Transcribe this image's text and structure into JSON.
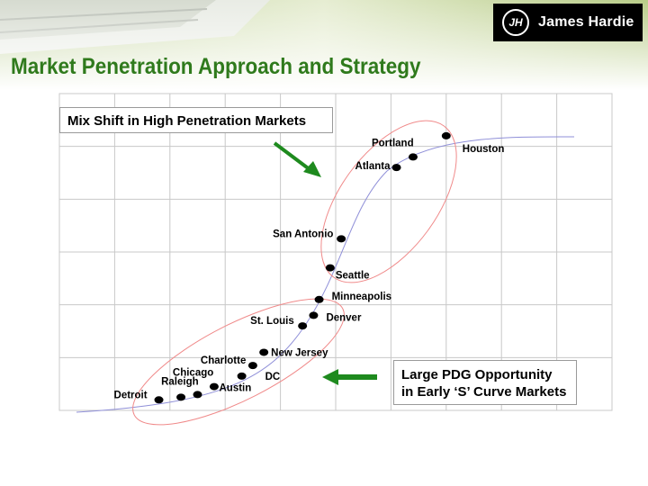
{
  "header": {
    "logo_text": "James Hardie",
    "logo_mark": "JH",
    "page_title": "Market Penetration Approach and Strategy"
  },
  "callouts": {
    "top": "Mix Shift in High Penetration Markets",
    "bottom_line1": "Large PDG Opportunity",
    "bottom_line2": "in Early ‘S’ Curve Markets"
  },
  "colors": {
    "title_green": "#2f7a1c",
    "arrow_green": "#1e8a1e",
    "curve": "#8f8fd8",
    "ellipse": "#f08a8a",
    "grid": "#c8c8c8"
  },
  "chart_data": {
    "type": "scatter",
    "title": "",
    "xlabel": "",
    "ylabel": "",
    "grid": true,
    "xlim": [
      0,
      10
    ],
    "ylim": [
      0,
      6
    ],
    "series": [
      {
        "points": [
          {
            "label": "Detroit",
            "x": 1.8,
            "y": 0.2
          },
          {
            "label": "Raleigh",
            "x": 2.2,
            "y": 0.25
          },
          {
            "label": "Austin",
            "x": 2.5,
            "y": 0.3
          },
          {
            "label": "Chicago",
            "x": 2.8,
            "y": 0.45
          },
          {
            "label": "DC",
            "x": 3.3,
            "y": 0.65
          },
          {
            "label": "Charlotte",
            "x": 3.5,
            "y": 0.85
          },
          {
            "label": "New Jersey",
            "x": 3.7,
            "y": 1.1
          },
          {
            "label": "St. Louis",
            "x": 4.4,
            "y": 1.6
          },
          {
            "label": "Denver",
            "x": 4.6,
            "y": 1.8
          },
          {
            "label": "Minneapolis",
            "x": 4.7,
            "y": 2.1
          },
          {
            "label": "Seattle",
            "x": 4.9,
            "y": 2.7
          },
          {
            "label": "San Antonio",
            "x": 5.1,
            "y": 3.25
          },
          {
            "label": "Atlanta",
            "x": 6.1,
            "y": 4.6
          },
          {
            "label": "Portland",
            "x": 6.4,
            "y": 4.8
          },
          {
            "label": "Houston",
            "x": 7.0,
            "y": 5.2
          }
        ]
      }
    ]
  }
}
